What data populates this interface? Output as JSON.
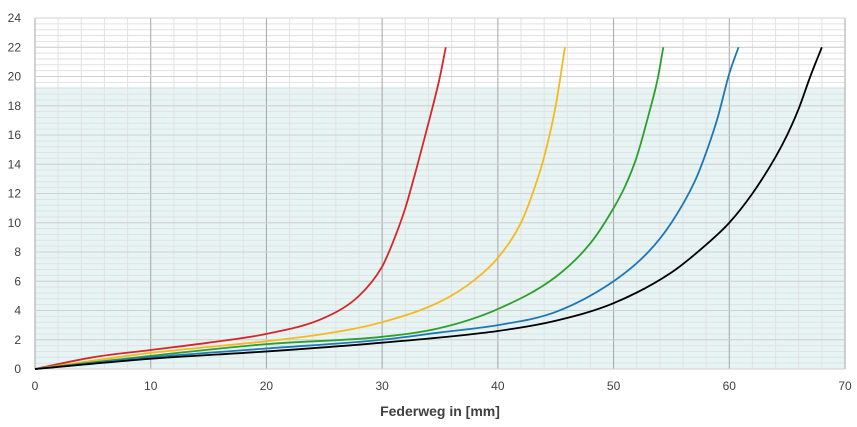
{
  "chart_data": {
    "type": "line",
    "title": "",
    "xlabel": "Federweg in [mm]",
    "ylabel": "",
    "xlim": [
      0,
      70
    ],
    "ylim": [
      0,
      24
    ],
    "x_ticks": [
      0,
      10,
      20,
      30,
      40,
      50,
      60,
      70
    ],
    "y_ticks": [
      0,
      2,
      4,
      6,
      8,
      10,
      12,
      14,
      16,
      18,
      20,
      22,
      24
    ],
    "grid": true,
    "minor_grid": true,
    "shaded_band": {
      "y_from": 0,
      "y_to": 19.3,
      "color": "#e6f4f4"
    },
    "legend": "none",
    "series": [
      {
        "color": "#d62728",
        "x": [
          0,
          5,
          10,
          15,
          20,
          25,
          28,
          30,
          31,
          32,
          33,
          34,
          35,
          35.5
        ],
        "y": [
          0,
          0.8,
          1.3,
          1.8,
          2.4,
          3.5,
          5.0,
          7.0,
          8.8,
          11.0,
          13.8,
          16.8,
          20.0,
          22.0
        ]
      },
      {
        "color": "#f5b91e",
        "x": [
          0,
          10,
          20,
          25,
          30,
          35,
          38,
          40,
          42,
          43,
          44,
          45,
          45.8
        ],
        "y": [
          0,
          1.1,
          1.9,
          2.4,
          3.2,
          4.6,
          6.1,
          7.6,
          10.0,
          12.0,
          14.5,
          18.0,
          22.0
        ]
      },
      {
        "color": "#2ca02c",
        "x": [
          0,
          10,
          20,
          30,
          35,
          40,
          45,
          48,
          50,
          51,
          52,
          53,
          53.8,
          54.3
        ],
        "y": [
          0,
          0.9,
          1.7,
          2.2,
          2.8,
          4.1,
          6.3,
          8.6,
          11.0,
          12.5,
          14.5,
          17.3,
          19.8,
          22.0
        ]
      },
      {
        "color": "#1f77b4",
        "x": [
          0,
          10,
          20,
          30,
          35,
          40,
          45,
          50,
          53,
          55,
          57,
          58,
          59,
          60,
          60.8
        ],
        "y": [
          0,
          0.8,
          1.4,
          2.0,
          2.5,
          3.0,
          3.9,
          6.0,
          8.0,
          10.0,
          12.8,
          14.8,
          17.2,
          20.2,
          22.0
        ]
      },
      {
        "color": "#000000",
        "x": [
          0,
          10,
          20,
          30,
          40,
          45,
          50,
          55,
          58,
          60,
          62,
          64,
          65,
          66,
          67,
          68
        ],
        "y": [
          0,
          0.7,
          1.2,
          1.8,
          2.6,
          3.3,
          4.5,
          6.6,
          8.5,
          10.0,
          12.0,
          14.5,
          16.0,
          17.8,
          20.0,
          22.0
        ]
      }
    ]
  }
}
